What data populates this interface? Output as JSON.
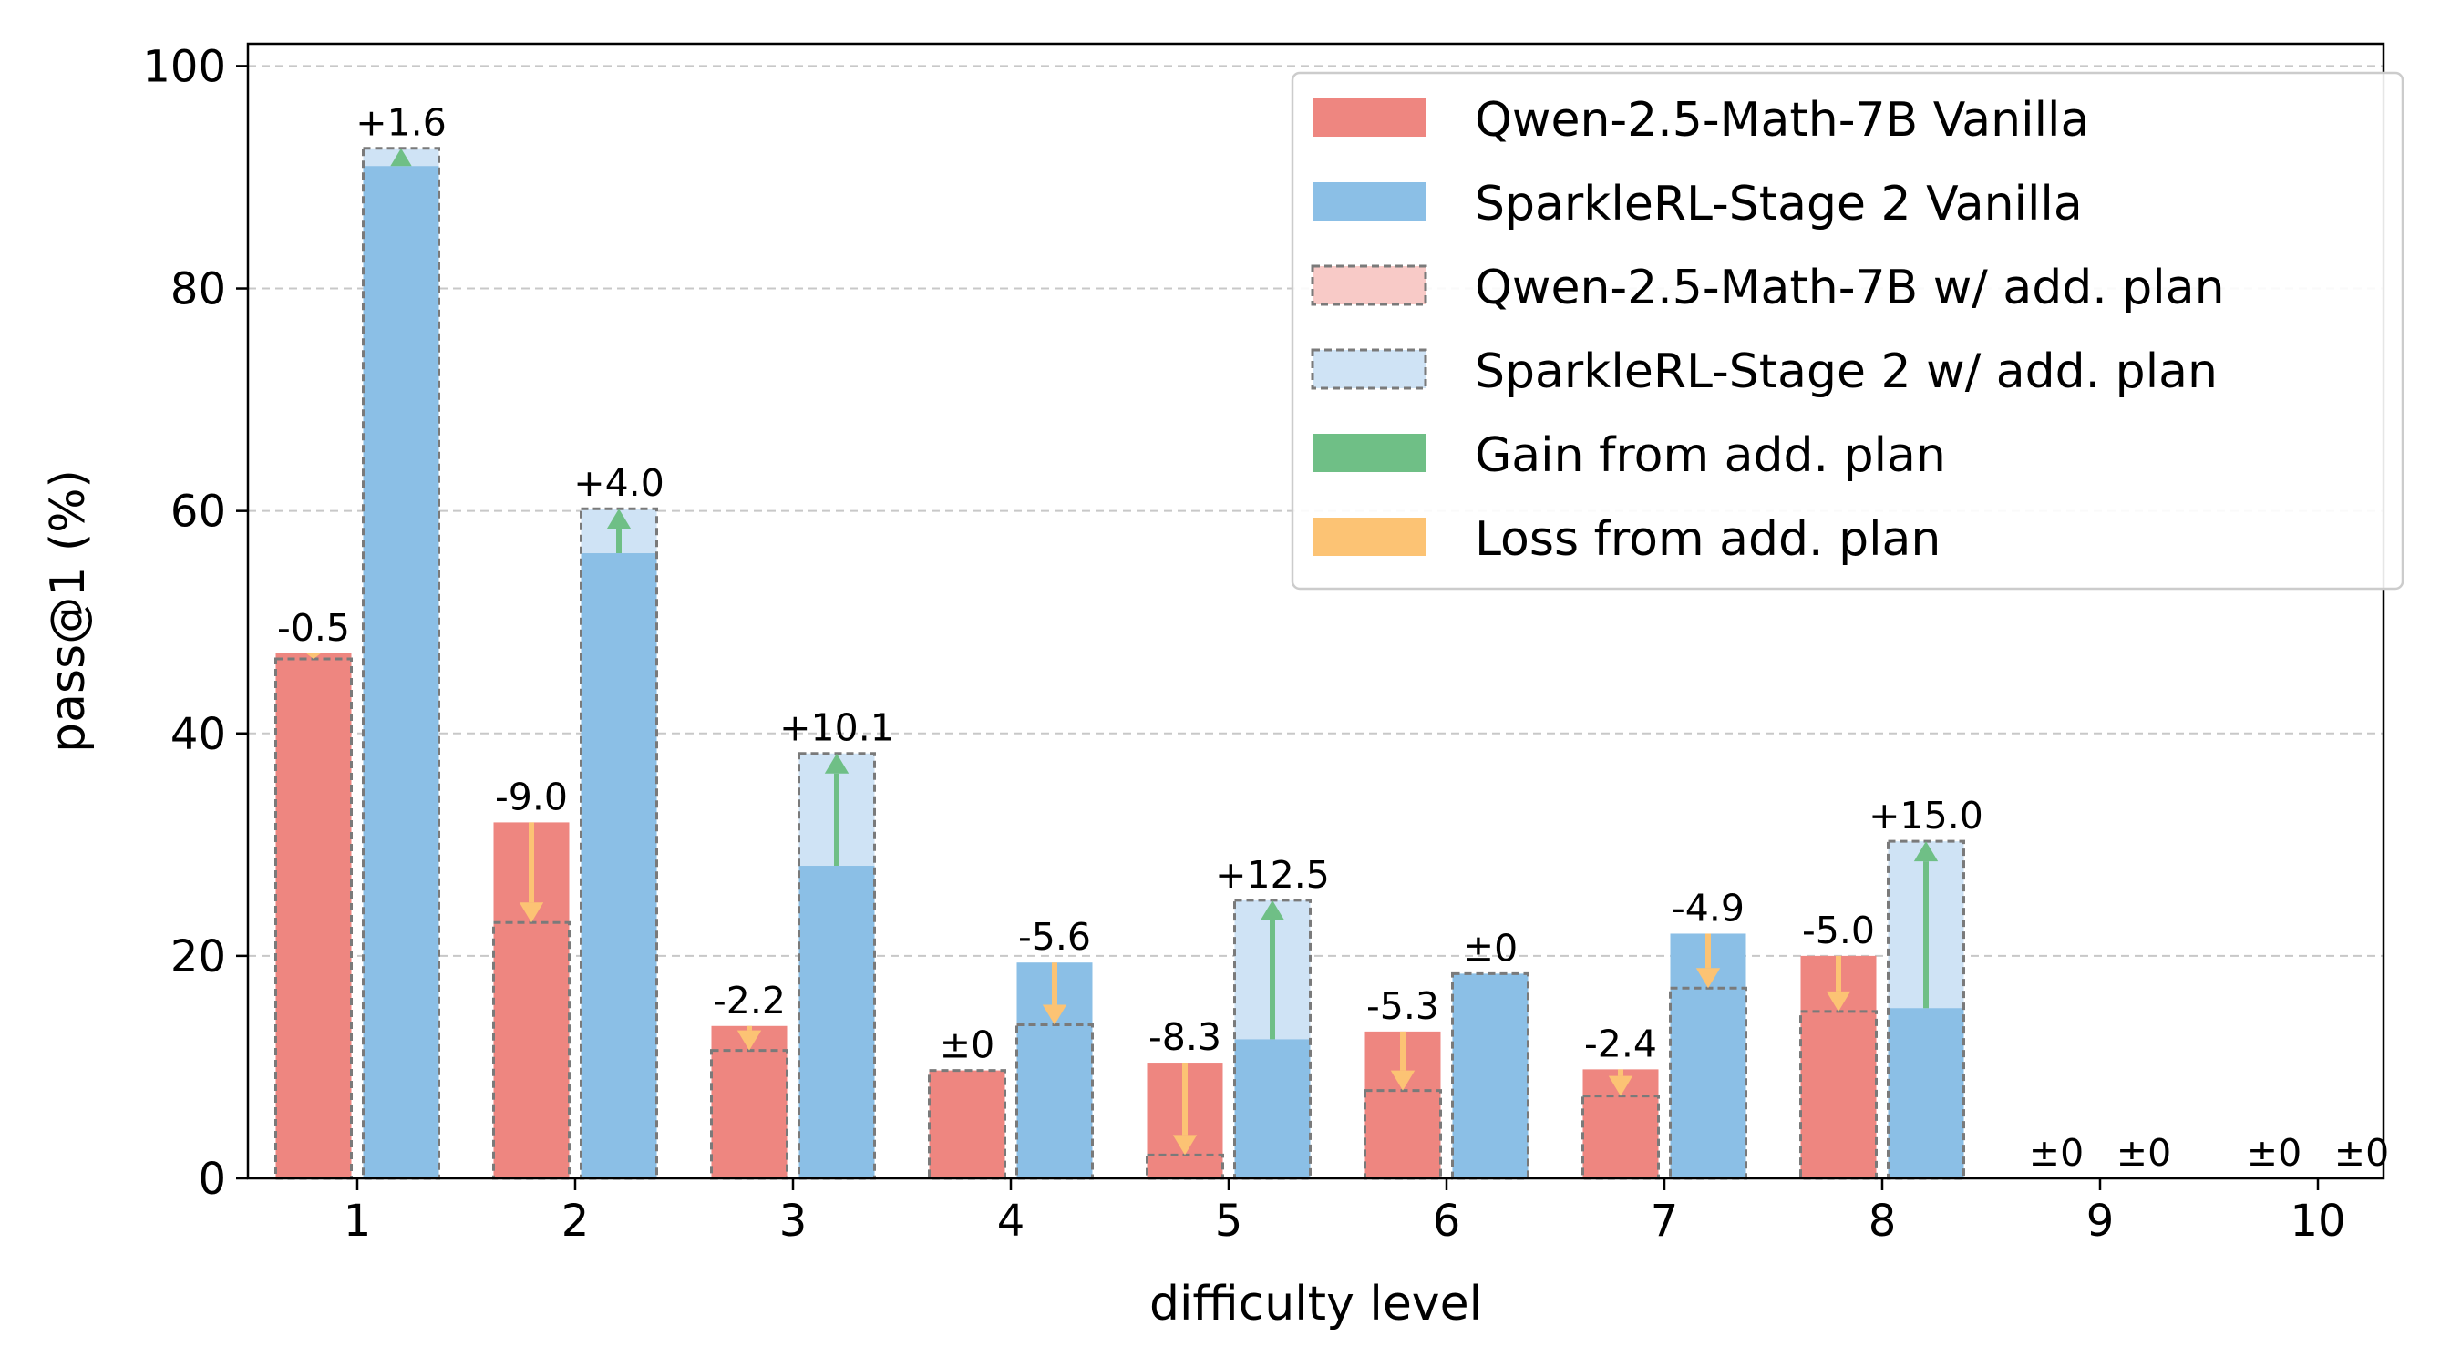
{
  "chart_data": {
    "type": "bar",
    "title": "",
    "xlabel": "difficulty level",
    "ylabel": "pass@1 (%)",
    "ylim": [
      0,
      102
    ],
    "yticks": [
      "0",
      "20",
      "40",
      "60",
      "80",
      "100"
    ],
    "grid": "y dashed",
    "categories": [
      "1",
      "2",
      "3",
      "4",
      "5",
      "6",
      "7",
      "8",
      "9",
      "10"
    ],
    "series": [
      {
        "name": "Qwen-2.5-Math-7B Vanilla",
        "values": [
          47.2,
          32.0,
          13.7,
          9.7,
          10.4,
          13.2,
          9.8,
          20.0,
          0,
          0
        ]
      },
      {
        "name": "SparkleRL-Stage 2 Vanilla",
        "values": [
          91.0,
          56.2,
          28.1,
          19.4,
          12.5,
          18.4,
          22.0,
          15.3,
          0,
          0
        ]
      },
      {
        "name": "Qwen-2.5-Math-7B w/ add. plan",
        "values": [
          46.7,
          23.0,
          11.5,
          9.7,
          2.1,
          7.9,
          7.4,
          15.0,
          0,
          0
        ]
      },
      {
        "name": "SparkleRL-Stage 2 w/ add. plan",
        "values": [
          92.6,
          60.2,
          38.2,
          13.8,
          25.0,
          18.4,
          17.1,
          30.3,
          0,
          0
        ]
      }
    ],
    "delta_labels": {
      "qwen": [
        "-0.5",
        "-9.0",
        "-2.2",
        "±0",
        "-8.3",
        "-5.3",
        "-2.4",
        "-5.0",
        "±0",
        "±0"
      ],
      "sparkle": [
        "+1.6",
        "+4.0",
        "+10.1",
        "-5.6",
        "+12.5",
        "±0",
        "-4.9",
        "+15.0",
        "±0",
        "±0"
      ]
    },
    "legend": {
      "position": "top-right",
      "entries": [
        "Qwen-2.5-Math-7B Vanilla",
        "SparkleRL-Stage 2 Vanilla",
        "Qwen-2.5-Math-7B w/ add. plan",
        "SparkleRL-Stage 2 w/ add. plan",
        "Gain from add. plan",
        "Loss from add. plan"
      ]
    },
    "colors": {
      "qwen": "#ee8680",
      "sparkle": "#8bbfe6",
      "qwen_plan": "#f8cac7",
      "sparkle_plan": "#cfe3f5",
      "gain": "#6fbf86",
      "loss": "#fcc374",
      "grid": "#c8c8c8"
    }
  }
}
